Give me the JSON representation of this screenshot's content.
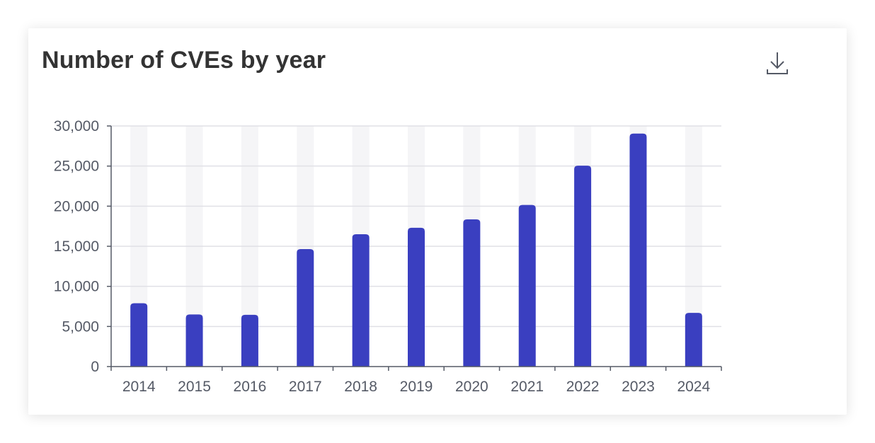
{
  "card": {
    "title": "Number of CVEs by year"
  },
  "toolbar": {
    "download_icon": "download-icon"
  },
  "colors": {
    "bar": "#3a3fc0",
    "bar_background": "#f5f5f7",
    "grid": "#e0e0e6",
    "axis": "#555a66",
    "title": "#333333"
  },
  "chart_data": {
    "type": "bar",
    "title": "Number of CVEs by year",
    "xlabel": "",
    "ylabel": "",
    "categories": [
      "2014",
      "2015",
      "2016",
      "2017",
      "2018",
      "2019",
      "2020",
      "2021",
      "2022",
      "2023",
      "2024"
    ],
    "values": [
      7900,
      6500,
      6450,
      14650,
      16500,
      17300,
      18350,
      20150,
      25050,
      29050,
      6700
    ],
    "ylim": [
      0,
      30000
    ],
    "yticks": [
      0,
      5000,
      10000,
      15000,
      20000,
      25000,
      30000
    ],
    "ytick_labels": [
      "0",
      "5,000",
      "10,000",
      "15,000",
      "20,000",
      "25,000",
      "30,000"
    ],
    "grid": true,
    "legend": "none"
  }
}
